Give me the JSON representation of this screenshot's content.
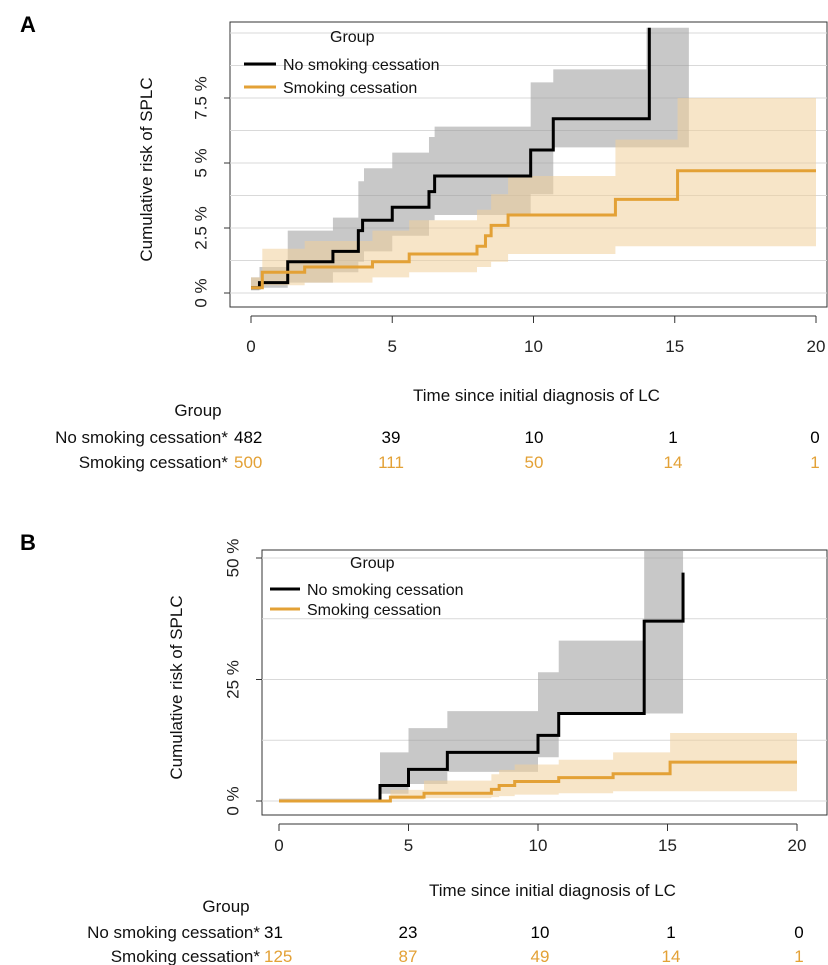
{
  "chart_data": [
    {
      "type": "line",
      "panel_label": "A",
      "xlabel": "Time since initial diagnosis of LC",
      "ylabel": "Cumulative risk of SPLC",
      "xlim": [
        0,
        20
      ],
      "ylim": [
        0,
        10
      ],
      "x_ticks": [
        0,
        5,
        10,
        15,
        20
      ],
      "x_tick_labels": [
        "0",
        "5",
        "10",
        "15",
        "20"
      ],
      "y_ticks": [
        0,
        2.5,
        5,
        7.5
      ],
      "y_tick_labels": [
        "0 %",
        "2.5 %",
        "5 %",
        "7.5 %"
      ],
      "grid": true,
      "legend": {
        "title": "Group",
        "position": "top-left",
        "entries": [
          "No smoking cessation",
          "Smoking cessation"
        ]
      },
      "series": [
        {
          "name": "No smoking cessation",
          "color": "#000000",
          "ci_color": "#9a9a9a",
          "step_x": [
            0,
            0.3,
            1.3,
            2.9,
            3.8,
            3.95,
            4.0,
            5.0,
            6.3,
            6.5,
            9.9,
            10.7,
            14.0,
            14.1
          ],
          "step_y": [
            0.2,
            0.4,
            1.2,
            1.6,
            2.4,
            2.8,
            2.8,
            3.3,
            3.9,
            4.5,
            5.5,
            6.7,
            6.7,
            10.2
          ],
          "ci_x": [
            0,
            0.3,
            1.3,
            2.9,
            3.8,
            4.0,
            5.0,
            6.3,
            6.5,
            9.9,
            10.7,
            14.0,
            15.5
          ],
          "ci_lower": [
            0,
            0.1,
            0.2,
            0.4,
            0.8,
            1.2,
            1.6,
            2.2,
            2.8,
            3.0,
            3.8,
            5.6,
            5.6
          ],
          "ci_upper": [
            0.6,
            1.0,
            2.4,
            2.9,
            4.3,
            4.8,
            5.4,
            6.0,
            6.4,
            8.1,
            8.6,
            10.2,
            10.2
          ]
        },
        {
          "name": "Smoking cessation",
          "color": "#e3a136",
          "ci_color": "#f1cf9b",
          "step_x": [
            0,
            0.4,
            1.9,
            4.3,
            5.6,
            8.0,
            8.3,
            8.5,
            9.1,
            12.9,
            15.1,
            20.0
          ],
          "step_y": [
            0.2,
            0.8,
            1.0,
            1.2,
            1.5,
            1.8,
            2.2,
            2.6,
            3.0,
            3.6,
            4.7,
            4.7
          ],
          "ci_x": [
            0,
            0.4,
            1.9,
            4.3,
            5.6,
            8.0,
            8.5,
            9.1,
            12.9,
            15.1,
            20.0
          ],
          "ci_lower": [
            0,
            0.2,
            0.3,
            0.4,
            0.6,
            0.8,
            1.0,
            1.2,
            1.5,
            1.8,
            1.8
          ],
          "ci_upper": [
            0.6,
            1.7,
            2.0,
            2.4,
            2.8,
            3.2,
            3.8,
            4.5,
            5.9,
            7.5,
            7.5
          ]
        }
      ],
      "risk_table": {
        "title": "Group",
        "times": [
          0,
          5,
          10,
          15,
          20
        ],
        "rows": [
          {
            "label": "No smoking cessation*",
            "values": [
              "482",
              "39",
              "10",
              "1",
              "0"
            ],
            "color": "#000000"
          },
          {
            "label": "Smoking cessation*",
            "values": [
              "500",
              "111",
              "50",
              "14",
              "1"
            ],
            "color": "#e3a136"
          }
        ]
      }
    },
    {
      "type": "line",
      "panel_label": "B",
      "xlabel": "Time since initial diagnosis of LC",
      "ylabel": "Cumulative risk of SPLC",
      "xlim": [
        0,
        20
      ],
      "ylim": [
        0,
        50
      ],
      "x_ticks": [
        0,
        5,
        10,
        15,
        20
      ],
      "x_tick_labels": [
        "0",
        "5",
        "10",
        "15",
        "20"
      ],
      "y_ticks": [
        0,
        25,
        50
      ],
      "y_tick_labels": [
        "0 %",
        "25 %",
        "50 %"
      ],
      "grid": true,
      "legend": {
        "title": "Group",
        "position": "top-left",
        "entries": [
          "No smoking cessation",
          "Smoking cessation"
        ]
      },
      "series": [
        {
          "name": "No smoking cessation",
          "color": "#000000",
          "ci_color": "#9a9a9a",
          "step_x": [
            0,
            3.9,
            5.0,
            6.5,
            10.0,
            10.8,
            14.1,
            15.6
          ],
          "step_y": [
            0,
            3.2,
            6.5,
            10.0,
            13.5,
            18.0,
            37.0,
            47.0
          ],
          "ci_x": [
            0,
            3.9,
            5.0,
            6.5,
            10.0,
            10.8,
            14.1,
            15.6
          ],
          "ci_lower": [
            0,
            0.5,
            1.5,
            3.5,
            6.0,
            9.0,
            18.0,
            18.0
          ],
          "ci_upper": [
            0,
            10.0,
            15.0,
            18.5,
            26.5,
            33.0,
            54.0,
            54.0
          ]
        },
        {
          "name": "Smoking cessation",
          "color": "#e3a136",
          "ci_color": "#f1cf9b",
          "step_x": [
            0,
            4.3,
            5.6,
            8.2,
            8.5,
            9.1,
            10.8,
            12.9,
            15.1,
            20.0
          ],
          "step_y": [
            0,
            0.8,
            1.6,
            2.4,
            3.2,
            4.0,
            4.8,
            5.6,
            8.0,
            8.0
          ],
          "ci_x": [
            0,
            4.3,
            5.6,
            8.2,
            8.5,
            9.1,
            10.8,
            12.9,
            15.1,
            20.0
          ],
          "ci_lower": [
            0,
            0,
            0.3,
            0.6,
            0.8,
            1.0,
            1.3,
            1.6,
            2.0,
            2.0
          ],
          "ci_upper": [
            0,
            2.3,
            4.2,
            5.5,
            6.4,
            7.5,
            8.5,
            10.0,
            14.0,
            14.0
          ]
        }
      ],
      "risk_table": {
        "title": "Group",
        "times": [
          0,
          5,
          10,
          15,
          20
        ],
        "rows": [
          {
            "label": "No smoking cessation*",
            "values": [
              "31",
              "23",
              "10",
              "1",
              "0"
            ],
            "color": "#000000"
          },
          {
            "label": "Smoking cessation*",
            "values": [
              "125",
              "87",
              "49",
              "14",
              "1"
            ],
            "color": "#e3a136"
          }
        ]
      }
    }
  ]
}
